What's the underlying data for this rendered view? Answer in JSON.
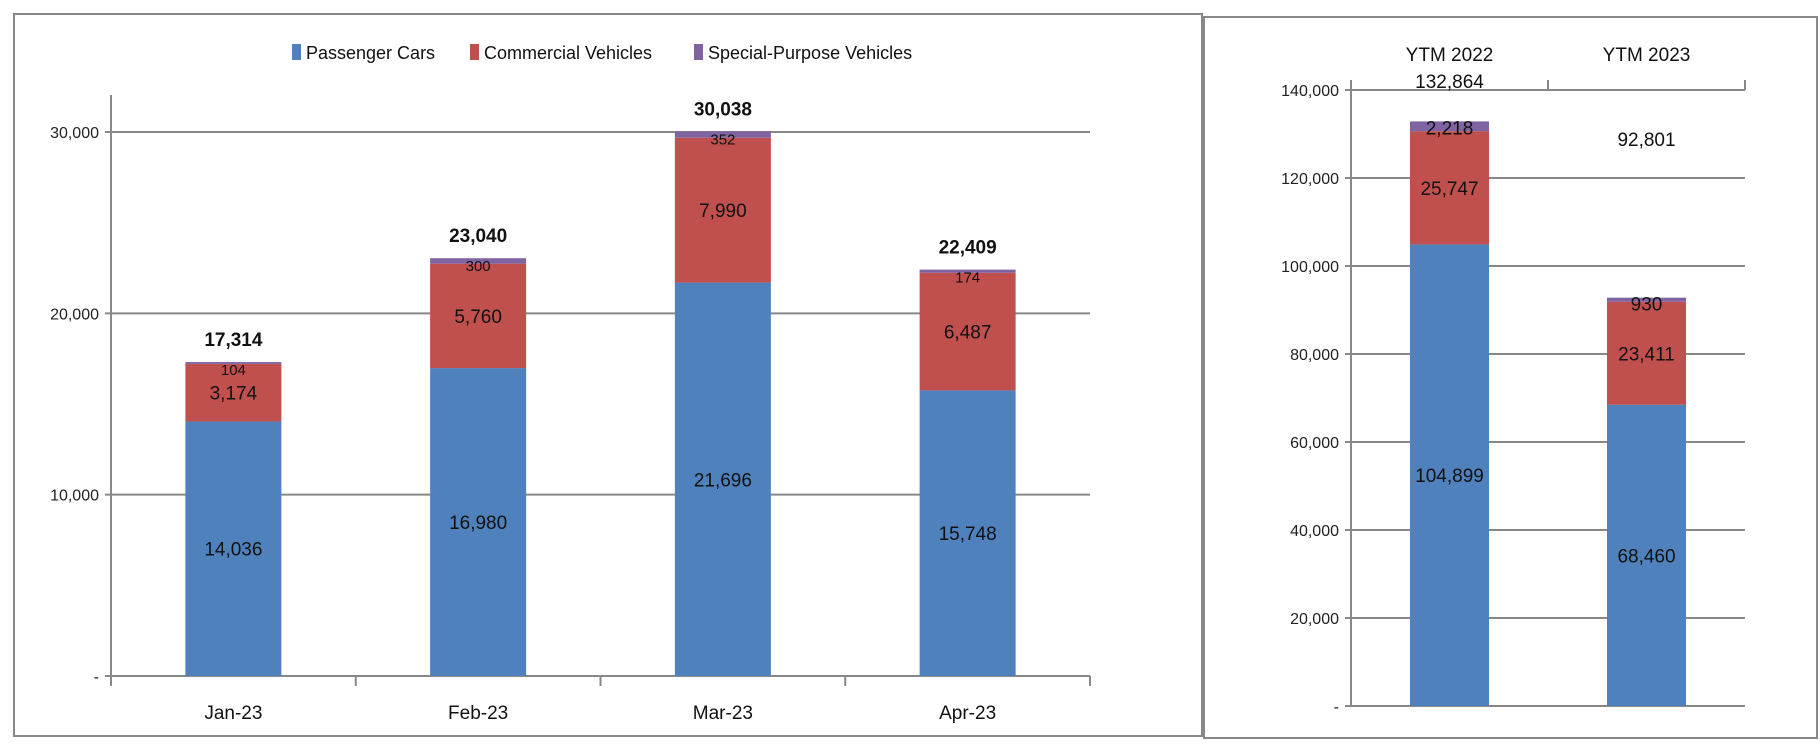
{
  "colors": {
    "passenger": "#4f81bd",
    "commercial": "#c0504d",
    "special": "#8064a2"
  },
  "chart_data": [
    {
      "type": "bar",
      "stacked": true,
      "title": "",
      "xlabel": "",
      "ylabel": "",
      "ylim": [
        0,
        30000
      ],
      "yticks": [
        0,
        10000,
        20000,
        30000
      ],
      "ytick_labels": [
        "-",
        "10,000",
        "20,000",
        "30,000"
      ],
      "grid": true,
      "legend_position": "top",
      "legend": [
        "Passenger Cars",
        "Commercial Vehicles",
        "Special-Purpose Vehicles"
      ],
      "categories": [
        "Jan-23",
        "Feb-23",
        "Mar-23",
        "Apr-23"
      ],
      "series": [
        {
          "name": "Passenger Cars",
          "values": [
            14036,
            16980,
            21696,
            15748
          ],
          "labels": [
            "14,036",
            "16,980",
            "21,696",
            "15,748"
          ]
        },
        {
          "name": "Commercial Vehicles",
          "values": [
            3174,
            5760,
            7990,
            6487
          ],
          "labels": [
            "3,174",
            "5,760",
            "7,990",
            "6,487"
          ]
        },
        {
          "name": "Special-Purpose Vehicles",
          "values": [
            104,
            300,
            352,
            174
          ],
          "labels": [
            "104",
            "300",
            "352",
            "174"
          ]
        }
      ],
      "totals": [
        17314,
        23040,
        30038,
        22409
      ],
      "total_labels": [
        "17,314",
        "23,040",
        "30,038",
        "22,409"
      ]
    },
    {
      "type": "bar",
      "stacked": true,
      "title": "",
      "xlabel": "",
      "ylabel": "",
      "ylim": [
        0,
        140000
      ],
      "yticks": [
        0,
        20000,
        40000,
        60000,
        80000,
        100000,
        120000,
        140000
      ],
      "ytick_labels": [
        "-",
        "20,000",
        "40,000",
        "60,000",
        "80,000",
        "100,000",
        "120,000",
        "140,000"
      ],
      "grid": true,
      "x_axis_position": "top",
      "categories": [
        "YTM 2022",
        "YTM 2023"
      ],
      "series": [
        {
          "name": "Passenger Cars",
          "values": [
            104899,
            68460
          ],
          "labels": [
            "104,899",
            "68,460"
          ]
        },
        {
          "name": "Commercial Vehicles",
          "values": [
            25747,
            23411
          ],
          "labels": [
            "25,747",
            "23,411"
          ]
        },
        {
          "name": "Special-Purpose Vehicles",
          "values": [
            2218,
            930
          ],
          "labels": [
            "2,218",
            "930"
          ]
        }
      ],
      "totals": [
        132864,
        92801
      ],
      "total_labels": [
        "132,864",
        "92,801"
      ]
    }
  ]
}
